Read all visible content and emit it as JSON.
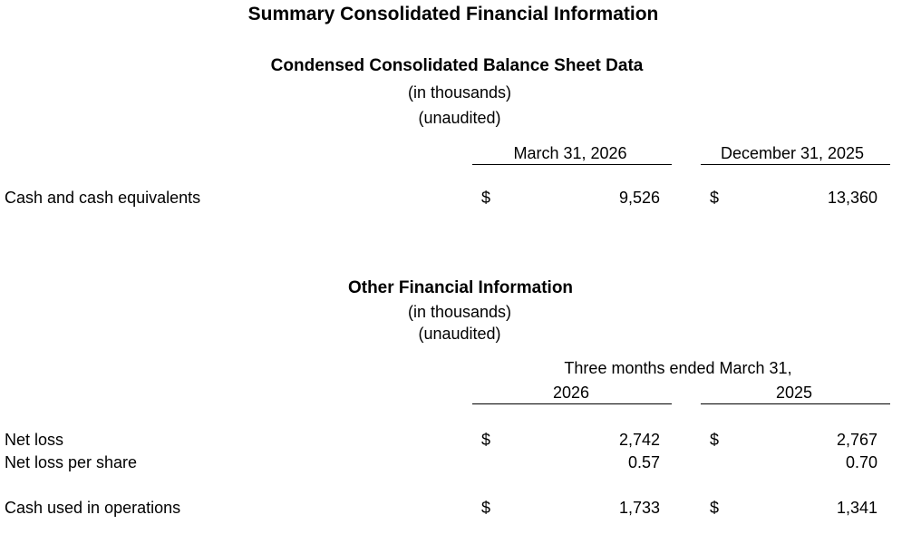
{
  "title": "Summary Consolidated Financial Information",
  "balance_sheet": {
    "title": "Condensed Consolidated Balance Sheet Data",
    "units": "(in thousands)",
    "note": "(unaudited)",
    "columns": [
      "March 31, 2026",
      "December 31, 2025"
    ],
    "rows": [
      {
        "label": "Cash and cash equivalents",
        "cells": [
          {
            "currency": "$",
            "amount": "9,526"
          },
          {
            "currency": "$",
            "amount": "13,360"
          }
        ]
      }
    ]
  },
  "other_information": {
    "title": "Other Financial Information",
    "units": "(in thousands)",
    "note": "(unaudited)",
    "column_group": "Three months ended March 31,",
    "columns": [
      "2026",
      "2025"
    ],
    "rows": [
      {
        "label": "Net loss",
        "cells": [
          {
            "currency": "$",
            "amount": "2,742"
          },
          {
            "currency": "$",
            "amount": "2,767"
          }
        ]
      },
      {
        "label": "Net loss per share",
        "cells": [
          {
            "amount": "0.57"
          },
          {
            "amount": "0.70"
          }
        ]
      },
      {
        "label": "Cash used in operations",
        "cells": [
          {
            "currency": "$",
            "amount": "1,733"
          },
          {
            "currency": "$",
            "amount": "1,341"
          }
        ]
      }
    ]
  }
}
